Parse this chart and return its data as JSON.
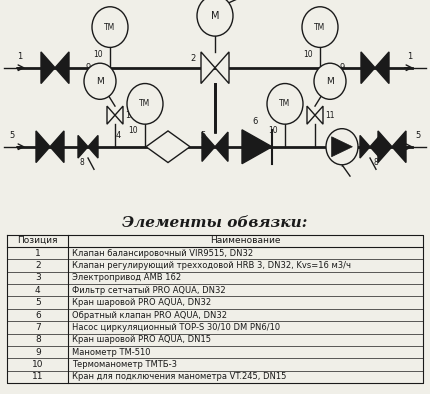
{
  "title": "Элементы обвязки:",
  "table_header": [
    "Позиция",
    "Наименование"
  ],
  "table_rows": [
    [
      "1",
      "Клапан балансировочный VIR9515, DN32"
    ],
    [
      "2",
      "Клапан регулирующий трехходовой HRB 3, DN32, Kvs=16 м3/ч"
    ],
    [
      "3",
      "Электропривод АМВ 162"
    ],
    [
      "4",
      "Фильтр сетчатый PRO AQUA, DN32"
    ],
    [
      "5",
      "Кран шаровой PRO AQUA, DN32"
    ],
    [
      "6",
      "Обратный клапан PRO AQUA, DN32"
    ],
    [
      "7",
      "Насос циркуляционный TOP-S 30/10 DM PN6/10"
    ],
    [
      "8",
      "Кран шаровой PRO AQUA, DN15"
    ],
    [
      "9",
      "Манометр ТМ-510"
    ],
    [
      "10",
      "Термоманометр ТМТБ-3"
    ],
    [
      "11",
      "Кран для подключения манометра VT.245, DN15"
    ]
  ],
  "bg_color": "#f0efe8",
  "line_color": "#1a1a1a",
  "text_color": "#1a1a1a"
}
